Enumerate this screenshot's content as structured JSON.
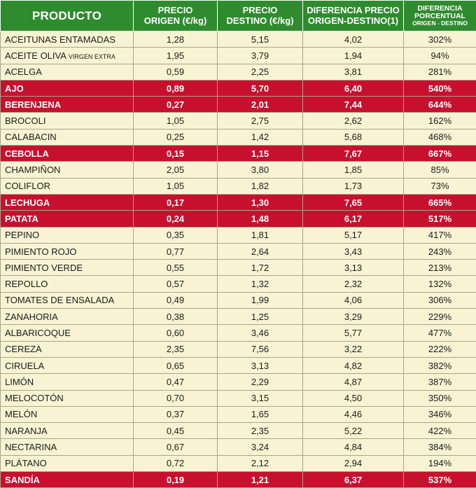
{
  "headers": {
    "producto": "PRODUCTO",
    "origen_1": "PRECIO",
    "origen_2": "ORIGEN (€/kg)",
    "destino_1": "PRECIO",
    "destino_2": "DESTINO (€/kg)",
    "diferencia_1": "DIFERENCIA PRECIO",
    "diferencia_2": "ORIGEN-DESTINO(1)",
    "porcentual_1": "DIFERENCIA",
    "porcentual_2": "PORCENTUAL",
    "porcentual_3": "ORIGEN - DESTINO"
  },
  "colors": {
    "header_green": "#2e8b2e",
    "highlight_red": "#c8102e",
    "row_cream": "#f8f4d3"
  },
  "rows": [
    {
      "producto": "ACEITUNAS ENTAMADAS",
      "qualifier": "",
      "origen": "1,28",
      "destino": "5,15",
      "diferencia": "4,02",
      "porcentaje": "302%",
      "highlight": false
    },
    {
      "producto": "ACEITE OLIVA",
      "qualifier": "VIRGEN EXTRA",
      "origen": "1,95",
      "destino": "3,79",
      "diferencia": "1,94",
      "porcentaje": "94%",
      "highlight": false
    },
    {
      "producto": "ACELGA",
      "qualifier": "",
      "origen": "0,59",
      "destino": "2,25",
      "diferencia": "3,81",
      "porcentaje": "281%",
      "highlight": false
    },
    {
      "producto": "AJO",
      "qualifier": "",
      "origen": "0,89",
      "destino": "5,70",
      "diferencia": "6,40",
      "porcentaje": "540%",
      "highlight": true
    },
    {
      "producto": "BERENJENA",
      "qualifier": "",
      "origen": "0,27",
      "destino": "2,01",
      "diferencia": "7,44",
      "porcentaje": "644%",
      "highlight": true
    },
    {
      "producto": "BROCOLI",
      "qualifier": "",
      "origen": "1,05",
      "destino": "2,75",
      "diferencia": "2,62",
      "porcentaje": "162%",
      "highlight": false
    },
    {
      "producto": "CALABACIN",
      "qualifier": "",
      "origen": "0,25",
      "destino": "1,42",
      "diferencia": "5,68",
      "porcentaje": "468%",
      "highlight": false
    },
    {
      "producto": "CEBOLLA",
      "qualifier": "",
      "origen": "0,15",
      "destino": "1,15",
      "diferencia": "7,67",
      "porcentaje": "667%",
      "highlight": true
    },
    {
      "producto": "CHAMPIÑON",
      "qualifier": "",
      "origen": "2,05",
      "destino": "3,80",
      "diferencia": "1,85",
      "porcentaje": "85%",
      "highlight": false
    },
    {
      "producto": "COLIFLOR",
      "qualifier": "",
      "origen": "1,05",
      "destino": "1,82",
      "diferencia": "1,73",
      "porcentaje": "73%",
      "highlight": false
    },
    {
      "producto": "LECHUGA",
      "qualifier": "",
      "origen": "0,17",
      "destino": "1,30",
      "diferencia": "7,65",
      "porcentaje": "665%",
      "highlight": true
    },
    {
      "producto": "PATATA",
      "qualifier": "",
      "origen": "0,24",
      "destino": "1,48",
      "diferencia": "6,17",
      "porcentaje": "517%",
      "highlight": true
    },
    {
      "producto": "PEPINO",
      "qualifier": "",
      "origen": "0,35",
      "destino": "1,81",
      "diferencia": "5,17",
      "porcentaje": "417%",
      "highlight": false
    },
    {
      "producto": "PIMIENTO ROJO",
      "qualifier": "",
      "origen": "0,77",
      "destino": "2,64",
      "diferencia": "3,43",
      "porcentaje": "243%",
      "highlight": false
    },
    {
      "producto": "PIMIENTO VERDE",
      "qualifier": "",
      "origen": "0,55",
      "destino": "1,72",
      "diferencia": "3,13",
      "porcentaje": "213%",
      "highlight": false
    },
    {
      "producto": "REPOLLO",
      "qualifier": "",
      "origen": "0,57",
      "destino": "1,32",
      "diferencia": "2,32",
      "porcentaje": "132%",
      "highlight": false
    },
    {
      "producto": "TOMATES DE ENSALADA",
      "qualifier": "",
      "origen": "0,49",
      "destino": "1,99",
      "diferencia": "4,06",
      "porcentaje": "306%",
      "highlight": false
    },
    {
      "producto": "ZANAHORIA",
      "qualifier": "",
      "origen": "0,38",
      "destino": "1,25",
      "diferencia": "3,29",
      "porcentaje": "229%",
      "highlight": false
    },
    {
      "producto": "ALBARICOQUE",
      "qualifier": "",
      "origen": "0,60",
      "destino": "3,46",
      "diferencia": "5,77",
      "porcentaje": "477%",
      "highlight": false
    },
    {
      "producto": "CEREZA",
      "qualifier": "",
      "origen": "2,35",
      "destino": "7,56",
      "diferencia": "3,22",
      "porcentaje": "222%",
      "highlight": false
    },
    {
      "producto": "CIRUELA",
      "qualifier": "",
      "origen": "0,65",
      "destino": "3,13",
      "diferencia": "4,82",
      "porcentaje": "382%",
      "highlight": false
    },
    {
      "producto": "LIMÓN",
      "qualifier": "",
      "origen": "0,47",
      "destino": "2,29",
      "diferencia": "4,87",
      "porcentaje": "387%",
      "highlight": false
    },
    {
      "producto": "MELOCOTÓN",
      "qualifier": "",
      "origen": "0,70",
      "destino": "3,15",
      "diferencia": "4,50",
      "porcentaje": "350%",
      "highlight": false
    },
    {
      "producto": "MELÓN",
      "qualifier": "",
      "origen": "0,37",
      "destino": "1,65",
      "diferencia": "4,46",
      "porcentaje": "346%",
      "highlight": false
    },
    {
      "producto": "NARANJA",
      "qualifier": "",
      "origen": "0,45",
      "destino": "2,35",
      "diferencia": "5,22",
      "porcentaje": "422%",
      "highlight": false
    },
    {
      "producto": "NECTARINA",
      "qualifier": "",
      "origen": "0,67",
      "destino": "3,24",
      "diferencia": "4,84",
      "porcentaje": "384%",
      "highlight": false
    },
    {
      "producto": "PLÁTANO",
      "qualifier": "",
      "origen": "0,72",
      "destino": "2,12",
      "diferencia": "2,94",
      "porcentaje": "194%",
      "highlight": false
    },
    {
      "producto": "SANDÍA",
      "qualifier": "",
      "origen": "0,19",
      "destino": "1,21",
      "diferencia": "6,37",
      "porcentaje": "537%",
      "highlight": true
    }
  ]
}
